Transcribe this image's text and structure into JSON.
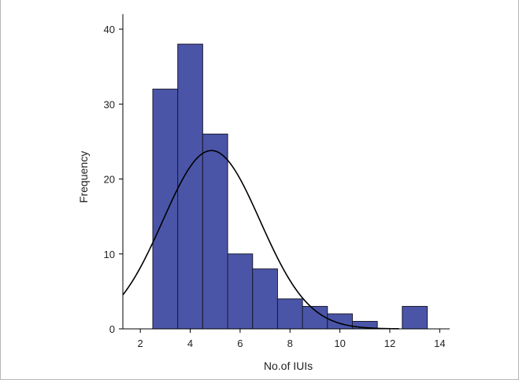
{
  "chart_data": {
    "type": "bar",
    "title": "",
    "xlabel": "No.of IUIs",
    "ylabel": "Frequency",
    "bin_edges": [
      2.5,
      3.5,
      4.5,
      5.5,
      6.5,
      7.5,
      8.5,
      9.5,
      10.5,
      11.5,
      12.5,
      13.5
    ],
    "values": [
      32,
      38,
      26,
      10,
      8,
      4,
      3,
      2,
      1,
      0,
      3
    ],
    "xlim": [
      1.3,
      14.4
    ],
    "ylim": [
      0,
      42
    ],
    "xticks": [
      2,
      4,
      6,
      8,
      10,
      12,
      14
    ],
    "yticks": [
      0,
      10,
      20,
      30,
      40
    ],
    "grid": false,
    "legend": "none",
    "bar_color": "#4a55a8",
    "bar_edge_color": "#1a1a2e",
    "overlay": {
      "type": "normal-curve",
      "mean": 4.85,
      "sd": 1.95,
      "peak": 23.8,
      "color": "#000000"
    }
  }
}
